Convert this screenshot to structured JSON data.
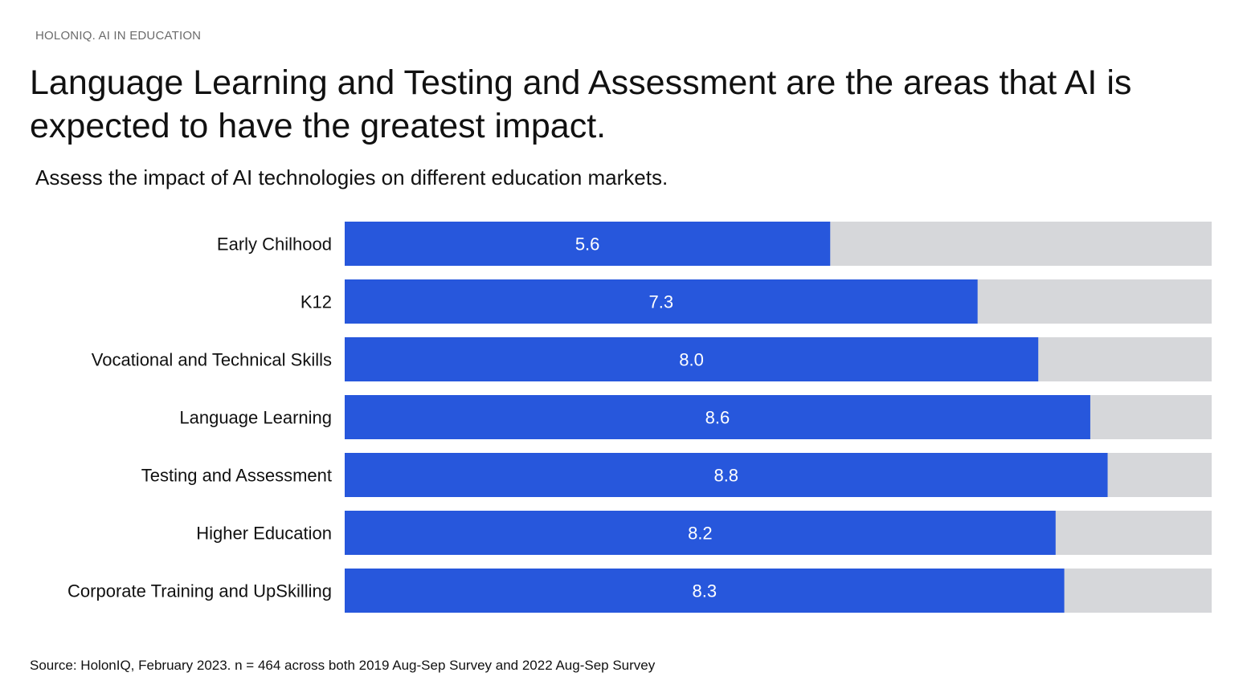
{
  "header": {
    "eyebrow": "HOLONIQ. AI IN EDUCATION",
    "title": "Language Learning and Testing and Assessment are the areas that AI is expected to have the greatest impact.",
    "subtitle": "Assess the impact of AI technologies on different education markets."
  },
  "footer": {
    "source": "Source: HolonIQ, February 2023. n = 464 across both 2019 Aug-Sep Survey and 2022 Aug-Sep Survey"
  },
  "colors": {
    "bar": "#2757dc",
    "track": "#d6d7da",
    "label": "#111111",
    "value_label": "#ffffff"
  },
  "chart_data": {
    "type": "bar",
    "orientation": "horizontal",
    "categories": [
      "Early Chilhood",
      "K12",
      "Vocational and Technical Skills",
      "Language Learning",
      "Testing and Assessment",
      "Higher Education",
      "Corporate Training and UpSkilling"
    ],
    "values": [
      5.6,
      7.3,
      8.0,
      8.6,
      8.8,
      8.2,
      8.3
    ],
    "value_labels": [
      "5.6",
      "7.3",
      "8.0",
      "8.6",
      "8.8",
      "8.2",
      "8.3"
    ],
    "xlim": [
      0,
      10
    ],
    "grid": false,
    "legend": "none"
  }
}
